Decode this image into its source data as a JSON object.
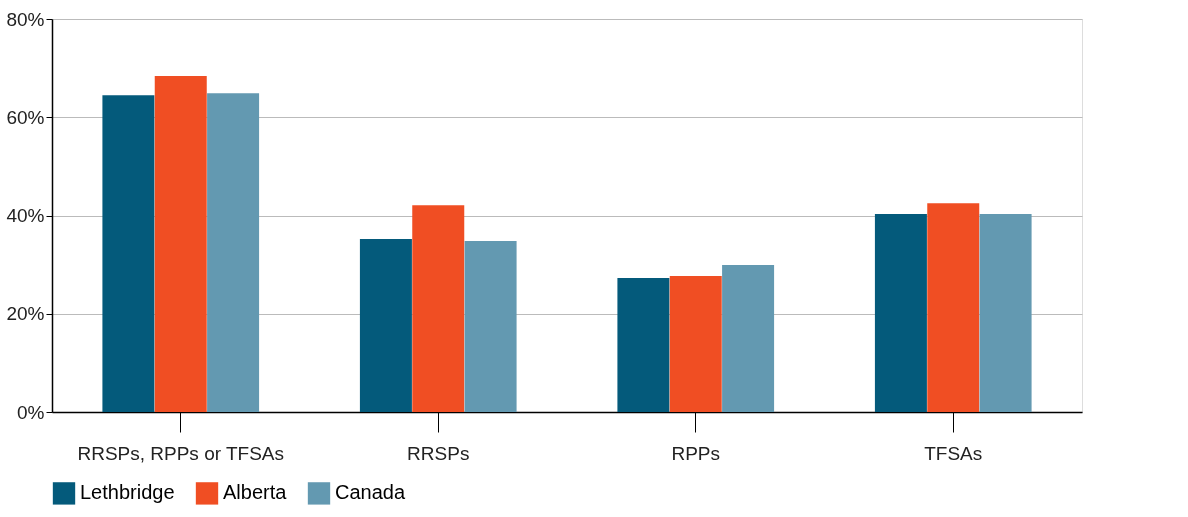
{
  "chart_data": {
    "type": "bar",
    "categories": [
      "RRSPs, RPPs or TFSAs",
      "RRSPs",
      "RPPs",
      "TFSAs"
    ],
    "series": [
      {
        "name": "Lethbridge",
        "color": "#045a7b",
        "values": [
          64.5,
          35.2,
          27.3,
          40.3
        ]
      },
      {
        "name": "Alberta",
        "color": "#f04e23",
        "values": [
          68.4,
          42.1,
          27.7,
          42.5
        ]
      },
      {
        "name": "Canada",
        "color": "#6399b1",
        "values": [
          64.9,
          34.8,
          29.9,
          40.3
        ]
      }
    ],
    "ylim": [
      0,
      80
    ],
    "yticks": [
      {
        "value": 0,
        "label": "0%"
      },
      {
        "value": 20,
        "label": "20%"
      },
      {
        "value": 40,
        "label": "40%"
      },
      {
        "value": 60,
        "label": "60%"
      },
      {
        "value": 80,
        "label": "80%"
      }
    ],
    "grid": "y",
    "legend": "bottom"
  }
}
